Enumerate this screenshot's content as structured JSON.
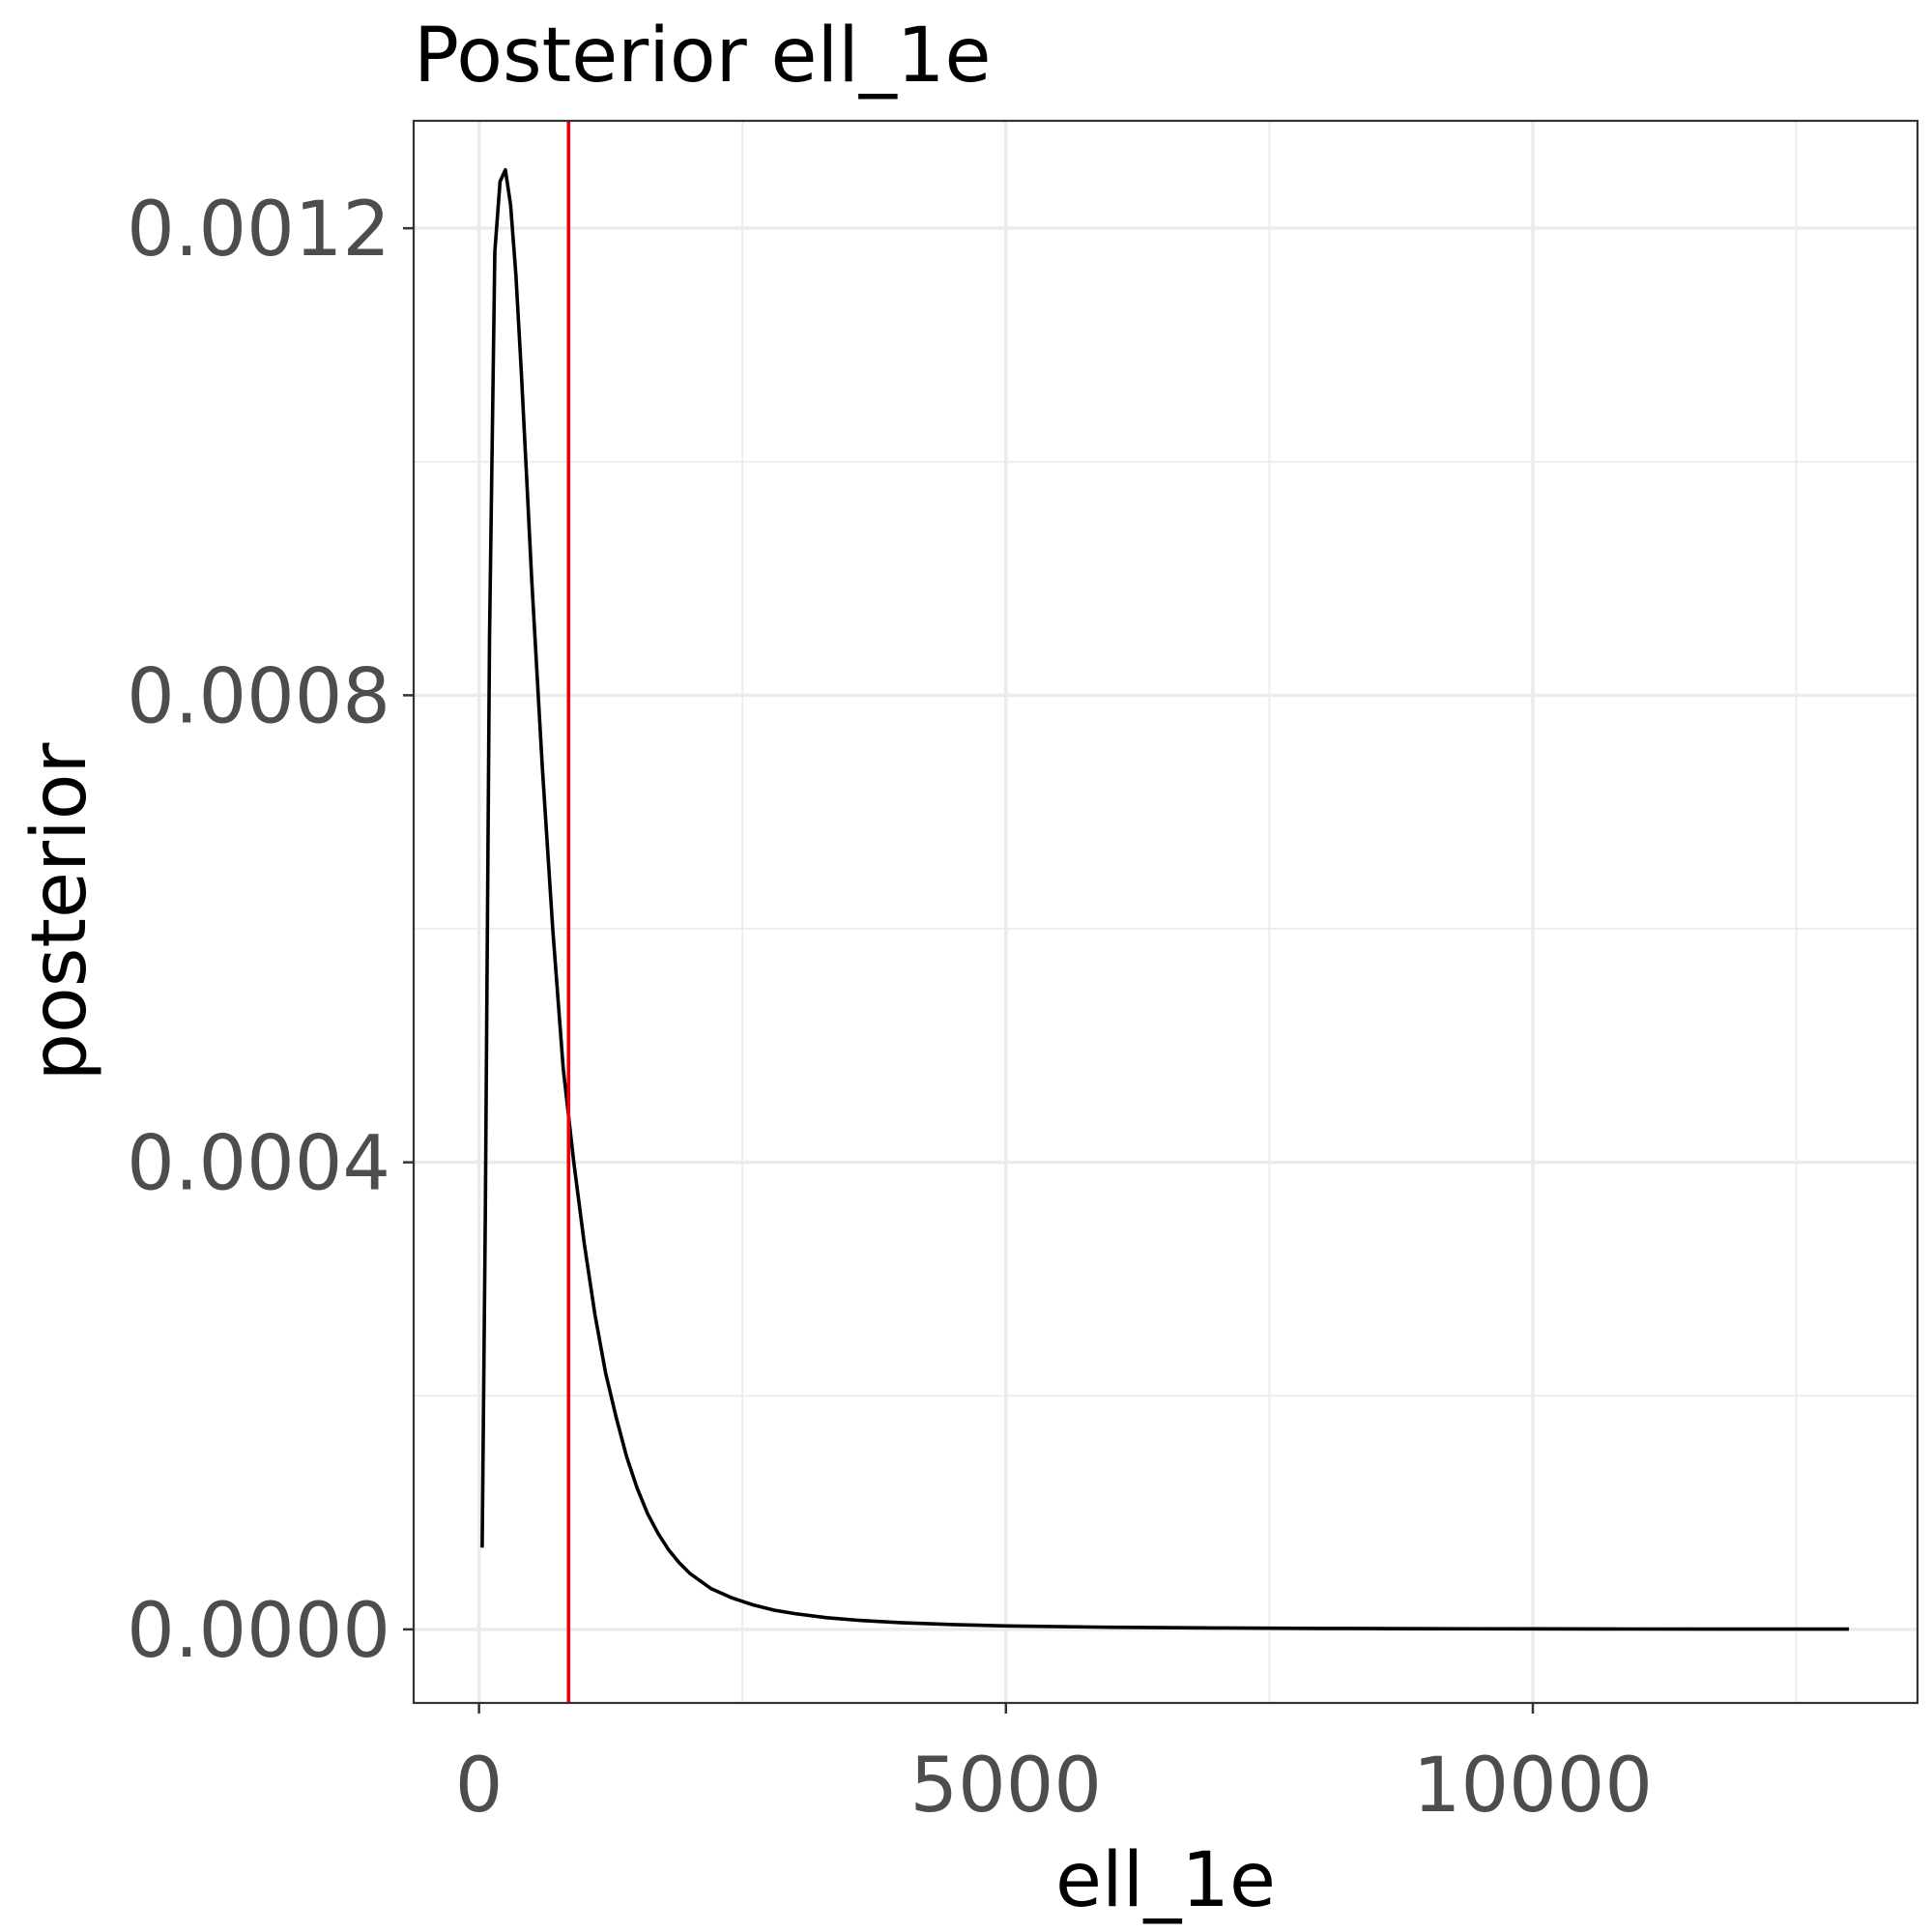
{
  "chart_data": {
    "type": "line",
    "title": "Posterior ell_1e",
    "xlabel": "ell_1e",
    "ylabel": "posterior",
    "xlim": [
      -620,
      13650
    ],
    "ylim": [
      -6.3e-05,
      0.001292
    ],
    "x_ticks": [
      0,
      5000,
      10000
    ],
    "x_tick_labels": [
      "0",
      "5000",
      "10000"
    ],
    "x_minor": [
      2500,
      7500,
      12500
    ],
    "y_ticks": [
      0.0,
      0.0004,
      0.0008,
      0.0012
    ],
    "y_tick_labels": [
      "0.0000",
      "0.0004",
      "0.0008",
      "0.0012"
    ],
    "y_minor": [
      0.0002,
      0.0006,
      0.001
    ],
    "grid": true,
    "legend": "none",
    "series": [
      {
        "color": "#000000",
        "x": [
          30,
          60,
          100,
          150,
          200,
          250,
          300,
          350,
          400,
          450,
          500,
          600,
          700,
          800,
          900,
          1000,
          1100,
          1200,
          1300,
          1400,
          1500,
          1600,
          1700,
          1800,
          1900,
          2000,
          2200,
          2400,
          2600,
          2800,
          3000,
          3300,
          3600,
          4000,
          4500,
          5000,
          6000,
          7000,
          8000,
          9000,
          10000,
          11000,
          12000,
          13000
        ],
        "y": [
          7e-05,
          0.00035,
          0.00085,
          0.00118,
          0.00124,
          0.00125,
          0.00122,
          0.00116,
          0.00108,
          0.00099,
          0.0009,
          0.00074,
          0.0006,
          0.00048,
          0.0004,
          0.00033,
          0.00027,
          0.00022,
          0.000182,
          0.000148,
          0.000121,
          9.9e-05,
          8.2e-05,
          6.8e-05,
          5.7e-05,
          4.8e-05,
          3.5e-05,
          2.7e-05,
          2.1e-05,
          1.65e-05,
          1.35e-05,
          1e-05,
          7.8e-06,
          5.8e-06,
          4.1e-06,
          3e-06,
          1.8e-06,
          1.2e-06,
          8e-07,
          6e-07,
          4.5e-07,
          3.5e-07,
          2.8e-07,
          2.2e-07
        ]
      }
    ],
    "reference_lines": [
      {
        "orientation": "vertical",
        "x": 850,
        "color": "#e8000b"
      }
    ]
  }
}
